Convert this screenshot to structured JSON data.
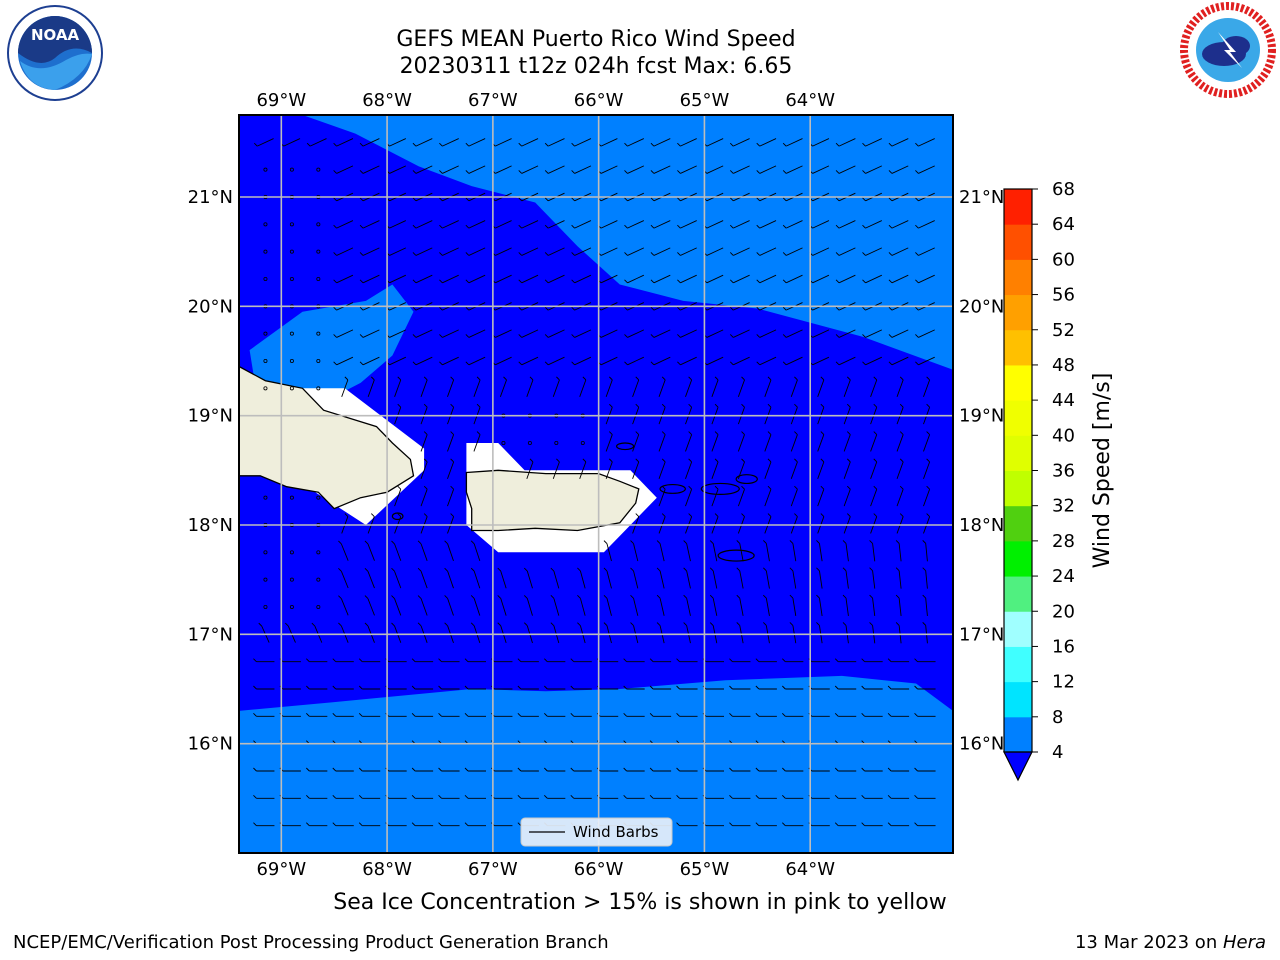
{
  "header": {
    "title": "GEFS MEAN Puerto Rico Wind Speed",
    "subtitle": "20230311 t12z 024h fcst   Max: 6.65"
  },
  "caption": "Sea Ice Concentration > 15% is shown in pink to yellow",
  "footer": {
    "left": "NCEP/EMC/Verification Post Processing Product Generation Branch",
    "right_date": "13 Mar 2023 on ",
    "right_machine": "Hera"
  },
  "logos": {
    "noaa": {
      "icon": "noaa-logo",
      "text": "NOAA",
      "ring_text": "NATIONAL OCEANIC AND ATMOSPHERIC ADMINISTRATION · U.S. DEPARTMENT OF COMMERCE"
    },
    "nws": {
      "icon": "nws-logo",
      "ring_text": "NATIONAL WEATHER SERVICE"
    }
  },
  "chart_data": {
    "type": "heatmap",
    "variable": "Wind Speed",
    "map_region": "Puerto Rico",
    "lon_range": [
      -69.4,
      -62.65
    ],
    "lat_range": [
      15.0,
      21.75
    ],
    "x_ticks": [
      -69,
      -68,
      -67,
      -66,
      -65,
      -64
    ],
    "x_tick_labels": [
      "69°W",
      "68°W",
      "67°W",
      "66°W",
      "65°W",
      "64°W"
    ],
    "y_ticks": [
      16,
      17,
      18,
      19,
      20,
      21
    ],
    "y_tick_labels": [
      "16°N",
      "17°N",
      "18°N",
      "19°N",
      "20°N",
      "21°N"
    ],
    "grid": true,
    "legend": {
      "entries": [
        "Wind Barbs"
      ],
      "position": "bottom-center"
    },
    "colorbar": {
      "label": "Wind Speed [m/s]",
      "levels": [
        4,
        8,
        12,
        16,
        20,
        24,
        28,
        32,
        36,
        40,
        44,
        48,
        52,
        56,
        60,
        64,
        68
      ],
      "colors": [
        "#0080ff",
        "#00e4ff",
        "#40ffff",
        "#a0ffff",
        "#50f080",
        "#00f000",
        "#50d010",
        "#c0ff00",
        "#e0ff00",
        "#f0ff00",
        "#ffff00",
        "#ffc000",
        "#ffa000",
        "#ff8000",
        "#ff5000",
        "#ff2000"
      ],
      "extend_min_color": "#0000ff"
    },
    "fill_colors": {
      "below_4": "#0000ff",
      "band_4_8": "#0080ff",
      "land": "#efeedc",
      "masked": "#ffffff"
    },
    "filled_regions": {
      "north_band_4_8": [
        [
          -68.8,
          21.75
        ],
        [
          -68.3,
          21.58
        ],
        [
          -67.7,
          21.28
        ],
        [
          -67.2,
          21.1
        ],
        [
          -66.6,
          20.95
        ],
        [
          -66.2,
          20.55
        ],
        [
          -65.8,
          20.2
        ],
        [
          -65.2,
          20.05
        ],
        [
          -64.5,
          19.98
        ],
        [
          -63.5,
          19.72
        ],
        [
          -62.65,
          19.42
        ],
        [
          -62.65,
          21.75
        ]
      ],
      "west_pocket_4_8": [
        [
          -68.8,
          19.95
        ],
        [
          -68.2,
          20.05
        ],
        [
          -67.95,
          20.2
        ],
        [
          -67.75,
          19.95
        ],
        [
          -67.95,
          19.55
        ],
        [
          -68.25,
          19.3
        ],
        [
          -68.55,
          19.15
        ],
        [
          -68.9,
          19.2
        ],
        [
          -69.25,
          19.3
        ],
        [
          -69.3,
          19.6
        ]
      ],
      "south_band_4_8": [
        [
          -69.4,
          16.3
        ],
        [
          -68.5,
          16.38
        ],
        [
          -67.2,
          16.5
        ],
        [
          -66.5,
          16.48
        ],
        [
          -65.8,
          16.5
        ],
        [
          -64.8,
          16.58
        ],
        [
          -63.7,
          16.62
        ],
        [
          -63.0,
          16.55
        ],
        [
          -62.65,
          16.3
        ],
        [
          -62.65,
          15.0
        ],
        [
          -69.4,
          15.0
        ]
      ],
      "mask_hispaniola": [
        [
          -69.4,
          19.25
        ],
        [
          -68.4,
          19.25
        ],
        [
          -67.65,
          18.7
        ],
        [
          -67.65,
          18.5
        ],
        [
          -68.2,
          18.0
        ],
        [
          -69.0,
          18.5
        ],
        [
          -69.4,
          18.5
        ]
      ],
      "mask_puerto_rico": [
        [
          -67.25,
          18.75
        ],
        [
          -66.95,
          18.75
        ],
        [
          -66.7,
          18.5
        ],
        [
          -65.7,
          18.5
        ],
        [
          -65.45,
          18.25
        ],
        [
          -65.75,
          17.95
        ],
        [
          -65.95,
          17.75
        ],
        [
          -66.95,
          17.75
        ],
        [
          -67.25,
          18.0
        ]
      ],
      "land_hispaniola": [
        [
          -69.4,
          19.45
        ],
        [
          -69.15,
          19.32
        ],
        [
          -68.8,
          19.25
        ],
        [
          -68.6,
          19.05
        ],
        [
          -68.1,
          18.9
        ],
        [
          -67.95,
          18.75
        ],
        [
          -67.78,
          18.6
        ],
        [
          -67.75,
          18.45
        ],
        [
          -68.0,
          18.3
        ],
        [
          -68.25,
          18.25
        ],
        [
          -68.5,
          18.15
        ],
        [
          -68.65,
          18.3
        ],
        [
          -68.95,
          18.35
        ],
        [
          -69.2,
          18.45
        ],
        [
          -69.4,
          18.45
        ]
      ],
      "land_puerto_rico": [
        [
          -67.25,
          18.48
        ],
        [
          -66.95,
          18.5
        ],
        [
          -66.5,
          18.47
        ],
        [
          -66.0,
          18.47
        ],
        [
          -65.8,
          18.4
        ],
        [
          -65.62,
          18.33
        ],
        [
          -65.65,
          18.2
        ],
        [
          -65.8,
          18.02
        ],
        [
          -66.2,
          17.95
        ],
        [
          -66.6,
          17.97
        ],
        [
          -66.95,
          17.95
        ],
        [
          -67.2,
          17.95
        ],
        [
          -67.2,
          18.15
        ],
        [
          -67.25,
          18.3
        ]
      ]
    },
    "wind_barbs_summary": "Barb vectors plotted across the domain on a 0.25 degree grid; calm circles over the weak-wind western area, west-to-east pointing barbs in the south, light northeasterlies in the north."
  }
}
